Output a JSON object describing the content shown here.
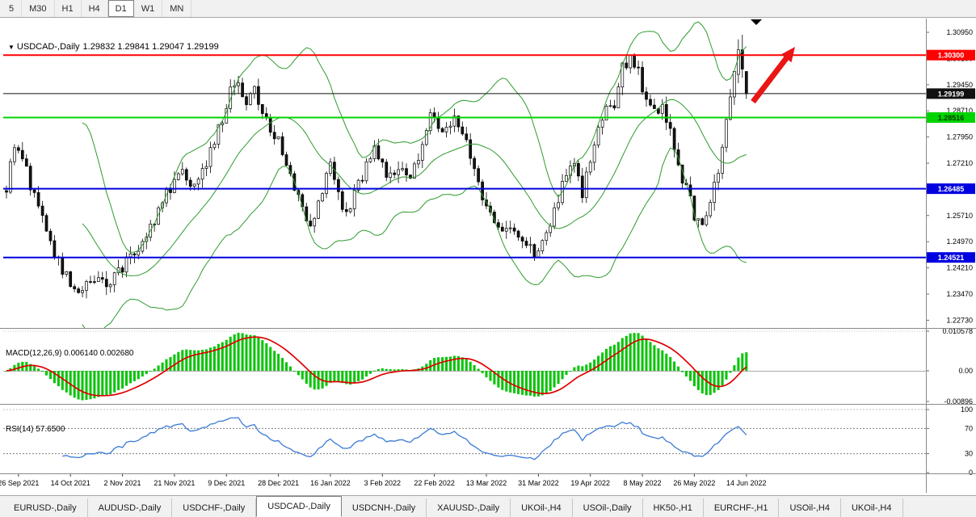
{
  "toolbar": {
    "timeframes": [
      {
        "label": "5",
        "active": false
      },
      {
        "label": "M30",
        "active": false
      },
      {
        "label": "H1",
        "active": false
      },
      {
        "label": "H4",
        "active": false
      },
      {
        "label": "D1",
        "active": true
      },
      {
        "label": "W1",
        "active": false
      },
      {
        "label": "MN",
        "active": false
      }
    ]
  },
  "chart_title": {
    "symbol": "USDCAD-,Daily",
    "ohlc": "1.29832 1.29841 1.29047 1.29199"
  },
  "chart_data": {
    "type": "candlestick",
    "symbol": "USDCAD",
    "timeframe": "Daily",
    "open": 1.29832,
    "high": 1.29841,
    "low": 1.29047,
    "close": 1.29199,
    "main_pane": {
      "price_axis_labels": [
        "1.30950",
        "1.30190",
        "1.29450",
        "1.28710",
        "1.27950",
        "1.27210",
        "1.26470",
        "1.25710",
        "1.24970",
        "1.24210",
        "1.23470",
        "1.22730"
      ],
      "price_axis_top": 1.3095,
      "price_axis_bottom": 1.2273,
      "candle_count": 186,
      "close_anchors": [
        [
          0,
          1.2655
        ],
        [
          2,
          1.2755
        ],
        [
          4,
          1.2745
        ],
        [
          6,
          1.266
        ],
        [
          9,
          1.256
        ],
        [
          12,
          1.2465
        ],
        [
          16,
          1.237
        ],
        [
          19,
          1.236
        ],
        [
          22,
          1.239
        ],
        [
          25,
          1.2375
        ],
        [
          27,
          1.24
        ],
        [
          30,
          1.244
        ],
        [
          33,
          1.2485
        ],
        [
          36,
          1.254
        ],
        [
          39,
          1.261
        ],
        [
          42,
          1.268
        ],
        [
          44,
          1.2715
        ],
        [
          46,
          1.2665
        ],
        [
          48,
          1.2695
        ],
        [
          50,
          1.273
        ],
        [
          52,
          1.2785
        ],
        [
          54,
          1.285
        ],
        [
          56,
          1.292
        ],
        [
          58,
          1.295
        ],
        [
          60,
          1.2895
        ],
        [
          62,
          1.2925
        ],
        [
          64,
          1.286
        ],
        [
          66,
          1.2825
        ],
        [
          68,
          1.278
        ],
        [
          70,
          1.272
        ],
        [
          72,
          1.265
        ],
        [
          74,
          1.259
        ],
        [
          76,
          1.256
        ],
        [
          78,
          1.26
        ],
        [
          80,
          1.268
        ],
        [
          81,
          1.2715
        ],
        [
          83,
          1.263
        ],
        [
          85,
          1.2585
        ],
        [
          87,
          1.2625
        ],
        [
          89,
          1.269
        ],
        [
          91,
          1.2745
        ],
        [
          92,
          1.2775
        ],
        [
          94,
          1.2705
        ],
        [
          96,
          1.2675
        ],
        [
          98,
          1.2715
        ],
        [
          100,
          1.2685
        ],
        [
          102,
          1.2705
        ],
        [
          104,
          1.2765
        ],
        [
          106,
          1.2855
        ],
        [
          108,
          1.2805
        ],
        [
          110,
          1.283
        ],
        [
          112,
          1.2865
        ],
        [
          114,
          1.2805
        ],
        [
          116,
          1.2745
        ],
        [
          118,
          1.2655
        ],
        [
          120,
          1.2605
        ],
        [
          122,
          1.2565
        ],
        [
          124,
          1.2525
        ],
        [
          126,
          1.2545
        ],
        [
          128,
          1.2505
        ],
        [
          130,
          1.248
        ],
        [
          132,
          1.2465
        ],
        [
          134,
          1.251
        ],
        [
          136,
          1.2555
        ],
        [
          138,
          1.262
        ],
        [
          140,
          1.268
        ],
        [
          142,
          1.2705
        ],
        [
          144,
          1.264
        ],
        [
          146,
          1.271
        ],
        [
          148,
          1.281
        ],
        [
          150,
          1.29
        ],
        [
          152,
          1.288
        ],
        [
          154,
          1.2995
        ],
        [
          156,
          1.3025
        ],
        [
          158,
          1.2985
        ],
        [
          160,
          1.2905
        ],
        [
          162,
          1.287
        ],
        [
          164,
          1.2895
        ],
        [
          166,
          1.2815
        ],
        [
          168,
          1.271
        ],
        [
          170,
          1.2645
        ],
        [
          172,
          1.2575
        ],
        [
          174,
          1.253
        ],
        [
          176,
          1.2605
        ],
        [
          178,
          1.2705
        ],
        [
          180,
          1.2855
        ],
        [
          182,
          1.2985
        ],
        [
          183,
          1.304
        ],
        [
          185,
          1.292
        ]
      ],
      "forced_tail": [
        [
          1.2975,
          1.3075,
          1.295,
          1.3045
        ],
        [
          1.3045,
          1.3088,
          1.2965,
          1.299
        ],
        [
          1.29832,
          1.29841,
          1.29047,
          1.29199
        ]
      ],
      "bollinger_period": 20,
      "bollinger_deviation": 2,
      "bollinger_color": "#2e9b2e",
      "up_color": "#ffffff",
      "down_color": "#141414",
      "horizontal_levels": [
        {
          "value": 1.303,
          "label": "1.30300",
          "color": "#ff0000",
          "tag_text_color": "#ffffff",
          "width": 2
        },
        {
          "value": 1.29199,
          "label": "1.29199",
          "color": "#111111",
          "tag_text_color": "#ffffff",
          "width": 1
        },
        {
          "value": 1.28516,
          "label": "1.28516",
          "color": "#00d400",
          "tag_text_color": "#063800",
          "width": 2
        },
        {
          "value": 1.26485,
          "label": "1.26485",
          "color": "#0000e0",
          "tag_text_color": "#ffffff",
          "width": 2
        },
        {
          "value": 1.24521,
          "label": "1.24521",
          "color": "#0000e0",
          "tag_text_color": "#ffffff",
          "width": 2
        }
      ],
      "arrow_color": "#ea1515"
    },
    "macd_pane": {
      "label": "MACD(12,26,9) 0.006140 0.002680",
      "fast": 12,
      "slow": 26,
      "signal": 9,
      "macd_value": 0.00614,
      "signal_value": 0.00268,
      "axis_labels": [
        "0.010578",
        "0.00",
        "-0.00896"
      ],
      "axis_top_value": 0.010578,
      "axis_bottom_value": -0.00896,
      "histogram_color": "#00c400",
      "signal_color": "#e00000"
    },
    "rsi_pane": {
      "label": "RSI(14) 57.6500",
      "period": 14,
      "value": 57.65,
      "axis_labels": [
        "100",
        "70",
        "30",
        "0"
      ],
      "axis_values": [
        100,
        70,
        30,
        0
      ],
      "level_lines": [
        70,
        30
      ],
      "line_color": "#3a7bd5"
    },
    "time_axis_labels": [
      "26 Sep 2021",
      "14 Oct 2021",
      "2 Nov 2021",
      "21 Nov 2021",
      "9 Dec 2021",
      "28 Dec 2021",
      "16 Jan 2022",
      "3 Feb 2022",
      "22 Feb 2022",
      "13 Mar 2022",
      "31 Mar 2022",
      "19 Apr 2022",
      "8 May 2022",
      "26 May 2022",
      "14 Jun 2022"
    ]
  },
  "tabs": [
    {
      "label": "EURUSD-,Daily",
      "active": false
    },
    {
      "label": "AUDUSD-,Daily",
      "active": false
    },
    {
      "label": "USDCHF-,Daily",
      "active": false
    },
    {
      "label": "USDCAD-,Daily",
      "active": true
    },
    {
      "label": "USDCNH-,Daily",
      "active": false
    },
    {
      "label": "XAUUSD-,Daily",
      "active": false
    },
    {
      "label": "UKOil-,H4",
      "active": false
    },
    {
      "label": "USOil-,Daily",
      "active": false
    },
    {
      "label": "HK50-,H1",
      "active": false
    },
    {
      "label": "EURCHF-,H1",
      "active": false
    },
    {
      "label": "USOil-,H4",
      "active": false
    },
    {
      "label": "UKOil-,H4",
      "active": false
    }
  ]
}
